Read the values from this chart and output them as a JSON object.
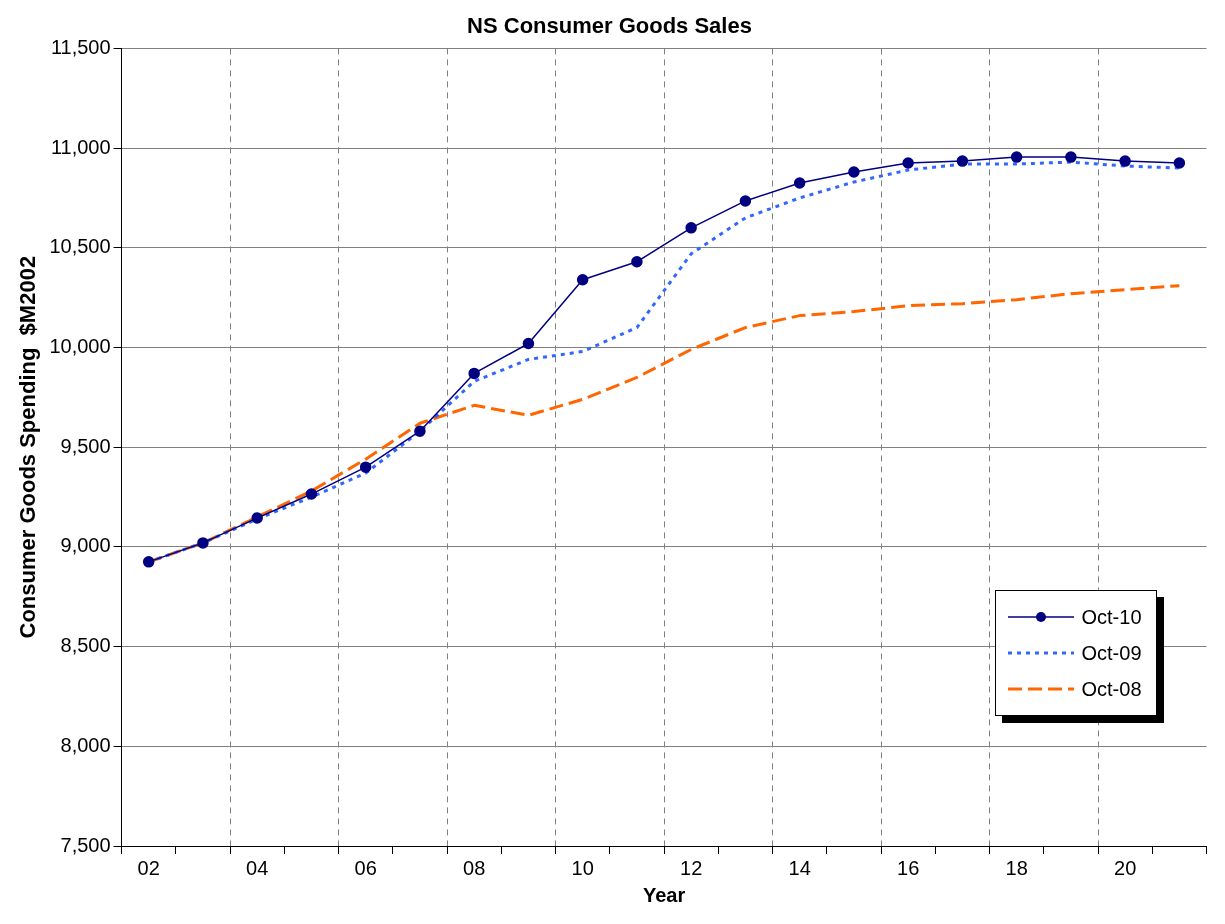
{
  "chart_data": {
    "type": "line",
    "title": "NS Consumer Goods Sales",
    "xlabel": "Year",
    "ylabel": "Consumer Goods Spending  $M2002",
    "categories": [
      "02",
      null,
      "04",
      null,
      "06",
      null,
      "08",
      null,
      "10",
      null,
      "12",
      null,
      "14",
      null,
      "16",
      null,
      "18",
      null,
      "20",
      null
    ],
    "ylim": [
      7500,
      11500
    ],
    "yticks": [
      {
        "value": 7500,
        "label": "7,500"
      },
      {
        "value": 8000,
        "label": "8,000"
      },
      {
        "value": 8500,
        "label": "8,500"
      },
      {
        "value": 9000,
        "label": "9,000"
      },
      {
        "value": 9500,
        "label": "9,500"
      },
      {
        "value": 10000,
        "label": "10,000"
      },
      {
        "value": 10500,
        "label": "10,500"
      },
      {
        "value": 11000,
        "label": "11,000"
      },
      {
        "value": 11500,
        "label": "11,500"
      }
    ],
    "grid": true,
    "legend": "bottom right",
    "series": [
      {
        "name": "Oct-10",
        "color": "#000080",
        "marker": "circle",
        "line_style": "solid",
        "values": [
          8925,
          9020,
          9145,
          9265,
          9400,
          9580,
          9870,
          10020,
          10340,
          10430,
          10600,
          10735,
          10825,
          10880,
          10925,
          10935,
          10955,
          10955,
          10935,
          10925
        ]
      },
      {
        "name": "Oct-09",
        "color": "#3366ff",
        "marker": "none",
        "line_style": "dotted",
        "values": [
          8925,
          9020,
          9140,
          9250,
          9370,
          9580,
          9830,
          9940,
          9980,
          10100,
          10470,
          10650,
          10750,
          10830,
          10890,
          10920,
          10920,
          10930,
          10910,
          10900
        ]
      },
      {
        "name": "Oct-08",
        "color": "#ff6600",
        "marker": "none",
        "line_style": "dashed",
        "values": [
          8925,
          9020,
          9150,
          9280,
          9440,
          9620,
          9710,
          9660,
          9740,
          9850,
          9990,
          10100,
          10160,
          10180,
          10210,
          10220,
          10240,
          10270,
          10290,
          10310
        ]
      }
    ]
  }
}
